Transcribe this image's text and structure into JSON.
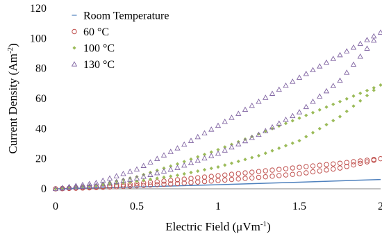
{
  "chart_data": {
    "type": "scatter",
    "title": "",
    "xlabel": {
      "main": "Electric Field (",
      "mu": "μ",
      "unit": "Vm",
      "sup": "-1",
      "close": ")"
    },
    "ylabel": {
      "main": "Current Density (Am",
      "sup": "-2",
      "close": ")"
    },
    "xlim": [
      0,
      2
    ],
    "ylim": [
      0,
      120
    ],
    "xticks": [
      0,
      0.5,
      1,
      1.5,
      2
    ],
    "xtick_labels": [
      "0",
      "0.5",
      "1",
      "1.5",
      "2"
    ],
    "yticks": [
      0,
      20,
      40,
      60,
      80,
      100,
      120
    ],
    "ytick_labels": [
      "0",
      "20",
      "40",
      "60",
      "80",
      "100",
      "120"
    ],
    "grid": false,
    "legend_position": "top-left",
    "series": [
      {
        "name": "Room Temperature",
        "marker": "dash",
        "color": "#4f81bd",
        "hysteresis": false,
        "up": [
          [
            0,
            0
          ],
          [
            0.5,
            1.2
          ],
          [
            1,
            2.7
          ],
          [
            1.5,
            4.4
          ],
          [
            2,
            6.2
          ]
        ]
      },
      {
        "name": "60 °C",
        "marker": "circle",
        "color": "#c0504d",
        "hysteresis": true,
        "up": [
          [
            0,
            0
          ],
          [
            0.25,
            0.8
          ],
          [
            0.5,
            2.0
          ],
          [
            0.75,
            3.5
          ],
          [
            1,
            5.5
          ],
          [
            1.25,
            7.6
          ],
          [
            1.5,
            10.0
          ],
          [
            1.75,
            13.8
          ],
          [
            2,
            20.0
          ]
        ],
        "down": [
          [
            2,
            20.0
          ],
          [
            1.75,
            17.0
          ],
          [
            1.5,
            14.3
          ],
          [
            1.25,
            11.5
          ],
          [
            1,
            8.7
          ],
          [
            0.75,
            6.0
          ],
          [
            0.5,
            3.4
          ],
          [
            0.25,
            1.3
          ],
          [
            0,
            0
          ]
        ]
      },
      {
        "name": "100 °C",
        "marker": "diamond",
        "color": "#9bbb59",
        "hysteresis": true,
        "up": [
          [
            0,
            0
          ],
          [
            0.25,
            2.0
          ],
          [
            0.5,
            5.0
          ],
          [
            0.75,
            9.0
          ],
          [
            1,
            14.5
          ],
          [
            1.25,
            22.0
          ],
          [
            1.5,
            32.0
          ],
          [
            1.75,
            48.0
          ],
          [
            2,
            69.0
          ]
        ],
        "down": [
          [
            2,
            69.0
          ],
          [
            1.75,
            58.0
          ],
          [
            1.5,
            47.0
          ],
          [
            1.25,
            36.5
          ],
          [
            1,
            26.0
          ],
          [
            0.75,
            16.5
          ],
          [
            0.5,
            8.0
          ],
          [
            0.25,
            2.5
          ],
          [
            0,
            0
          ]
        ]
      },
      {
        "name": "130 °C",
        "marker": "triangle",
        "color": "#8064a2",
        "hysteresis": true,
        "up": [
          [
            0,
            0
          ],
          [
            0.25,
            2.2
          ],
          [
            0.5,
            7.0
          ],
          [
            0.75,
            14.0
          ],
          [
            1,
            23.5
          ],
          [
            1.25,
            36.0
          ],
          [
            1.5,
            51.0
          ],
          [
            1.75,
            72.0
          ],
          [
            2,
            104.0
          ]
        ],
        "down": [
          [
            2,
            104.0
          ],
          [
            1.75,
            89.0
          ],
          [
            1.5,
            74.0
          ],
          [
            1.25,
            58.0
          ],
          [
            1,
            42.0
          ],
          [
            0.75,
            27.0
          ],
          [
            0.5,
            13.0
          ],
          [
            0.25,
            4.0
          ],
          [
            0,
            0
          ]
        ]
      }
    ]
  }
}
